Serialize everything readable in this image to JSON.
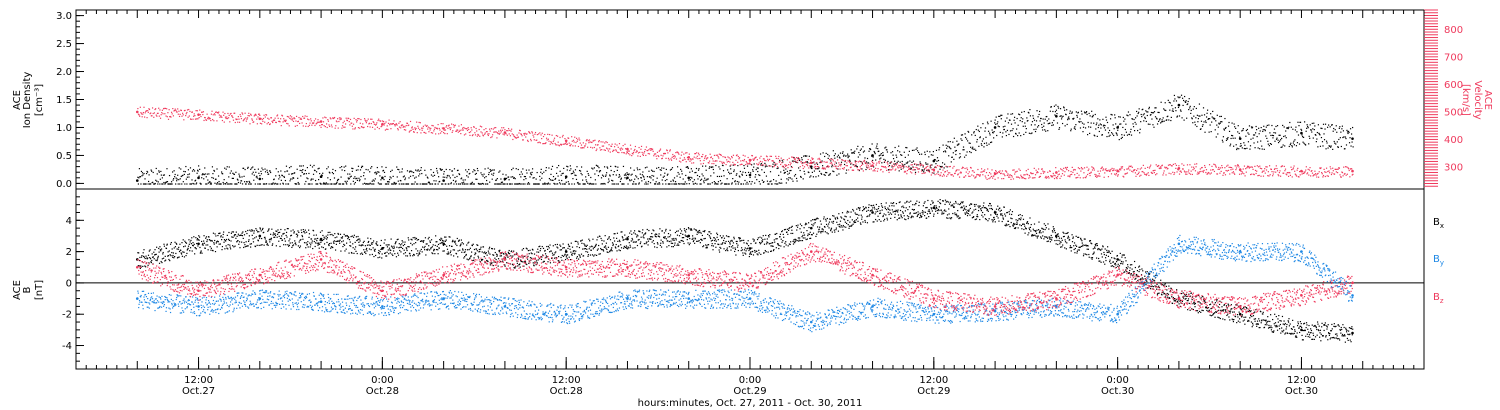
{
  "chart_data": [
    {
      "type": "scatter",
      "panel": "top",
      "ylabel_left": [
        "ACE",
        "Ion Density",
        "[cm⁻³]"
      ],
      "ylabel_right": [
        "ACE",
        "Velocity",
        "[km/s]"
      ],
      "ylim_left": [
        -0.1,
        3.1
      ],
      "ylim_right": [
        220,
        870
      ],
      "yticks_left": [
        "0.0",
        "0.5",
        "1.0",
        "1.5",
        "2.0",
        "2.5",
        "3.0"
      ],
      "yticks_right": [
        "300",
        "400",
        "500",
        "600",
        "700",
        "800"
      ],
      "series": [
        {
          "name": "Ion Density",
          "color": "#000000",
          "axis": "left",
          "x_hours": [
            0,
            6,
            12,
            18,
            24,
            30,
            36,
            42,
            48,
            54,
            60,
            66,
            72,
            78,
            84,
            90,
            96,
            102,
            108,
            114,
            119
          ],
          "y": [
            0.05,
            0.1,
            0.08,
            0.12,
            0.1,
            0.05,
            0.08,
            0.12,
            0.1,
            0.1,
            0.15,
            0.3,
            0.5,
            0.4,
            1.0,
            1.2,
            1.0,
            1.4,
            0.8,
            0.9,
            0.8
          ]
        },
        {
          "name": "Velocity",
          "color": "#ef3a5d",
          "axis": "right",
          "x_hours": [
            0,
            6,
            12,
            18,
            24,
            30,
            36,
            42,
            48,
            54,
            60,
            66,
            72,
            78,
            84,
            90,
            96,
            102,
            108,
            114,
            119
          ],
          "y": [
            500,
            490,
            475,
            465,
            455,
            440,
            425,
            395,
            365,
            335,
            325,
            315,
            305,
            290,
            275,
            280,
            285,
            295,
            290,
            285,
            285
          ]
        }
      ]
    },
    {
      "type": "scatter",
      "panel": "bottom",
      "ylabel_left": [
        "ACE",
        "B",
        "[nT]"
      ],
      "ylim": [
        -5.5,
        6
      ],
      "yticks": [
        "-4",
        "-2",
        "0",
        "2",
        "4"
      ],
      "series": [
        {
          "name": "Bx",
          "color": "#000000",
          "x_hours": [
            0,
            6,
            12,
            18,
            24,
            30,
            36,
            42,
            48,
            54,
            60,
            66,
            72,
            78,
            84,
            90,
            96,
            102,
            108,
            114,
            119
          ],
          "y": [
            1.5,
            2.5,
            3.0,
            2.8,
            2.2,
            2.5,
            1.5,
            2.0,
            2.8,
            3.0,
            2.2,
            3.5,
            4.5,
            4.8,
            4.5,
            3.0,
            1.5,
            -1.0,
            -2.0,
            -3.0,
            -3.2
          ]
        },
        {
          "name": "By",
          "color": "#1e88e5",
          "x_hours": [
            0,
            6,
            12,
            18,
            24,
            30,
            36,
            42,
            48,
            54,
            60,
            66,
            72,
            78,
            84,
            90,
            96,
            102,
            108,
            114,
            119
          ],
          "y": [
            -1.0,
            -1.5,
            -1.0,
            -1.2,
            -1.5,
            -1.0,
            -1.5,
            -2.0,
            -1.0,
            -1.0,
            -1.0,
            -2.5,
            -1.5,
            -2.0,
            -1.8,
            -1.5,
            -2.0,
            2.5,
            2.0,
            2.0,
            -0.8
          ]
        },
        {
          "name": "Bz",
          "color": "#ef3a5d",
          "x_hours": [
            0,
            6,
            12,
            18,
            24,
            30,
            36,
            42,
            48,
            54,
            60,
            66,
            72,
            78,
            84,
            90,
            96,
            102,
            108,
            114,
            119
          ],
          "y": [
            1.0,
            -0.5,
            0.5,
            1.5,
            -0.5,
            0.5,
            1.5,
            1.0,
            1.0,
            0.5,
            0.0,
            2.0,
            0.5,
            -1.0,
            -1.5,
            -1.0,
            0.5,
            -1.0,
            -1.5,
            -0.8,
            0.0
          ]
        }
      ],
      "legend": [
        "Bx",
        "By",
        "Bz"
      ]
    }
  ],
  "x_axis": {
    "range_hours": [
      -6,
      126
    ],
    "major_ticks": [
      {
        "h": 6,
        "time": "12:00",
        "date": "Oct.27"
      },
      {
        "h": 24,
        "time": "0:00",
        "date": "Oct.28"
      },
      {
        "h": 42,
        "time": "12:00",
        "date": "Oct.28"
      },
      {
        "h": 60,
        "time": "0:00",
        "date": "Oct.29"
      },
      {
        "h": 78,
        "time": "12:00",
        "date": "Oct.29"
      },
      {
        "h": 96,
        "time": "0:00",
        "date": "Oct.30"
      },
      {
        "h": 114,
        "time": "12:00",
        "date": "Oct.30"
      }
    ],
    "xlabel": "hours:minutes, Oct. 27, 2011 - Oct. 30, 2011"
  },
  "legend_labels": {
    "bx": "B",
    "bx_sub": "x",
    "by": "B",
    "by_sub": "y",
    "bz": "B",
    "bz_sub": "z"
  },
  "colors": {
    "black": "#000000",
    "red": "#ef3a5d",
    "blue": "#1e88e5"
  }
}
